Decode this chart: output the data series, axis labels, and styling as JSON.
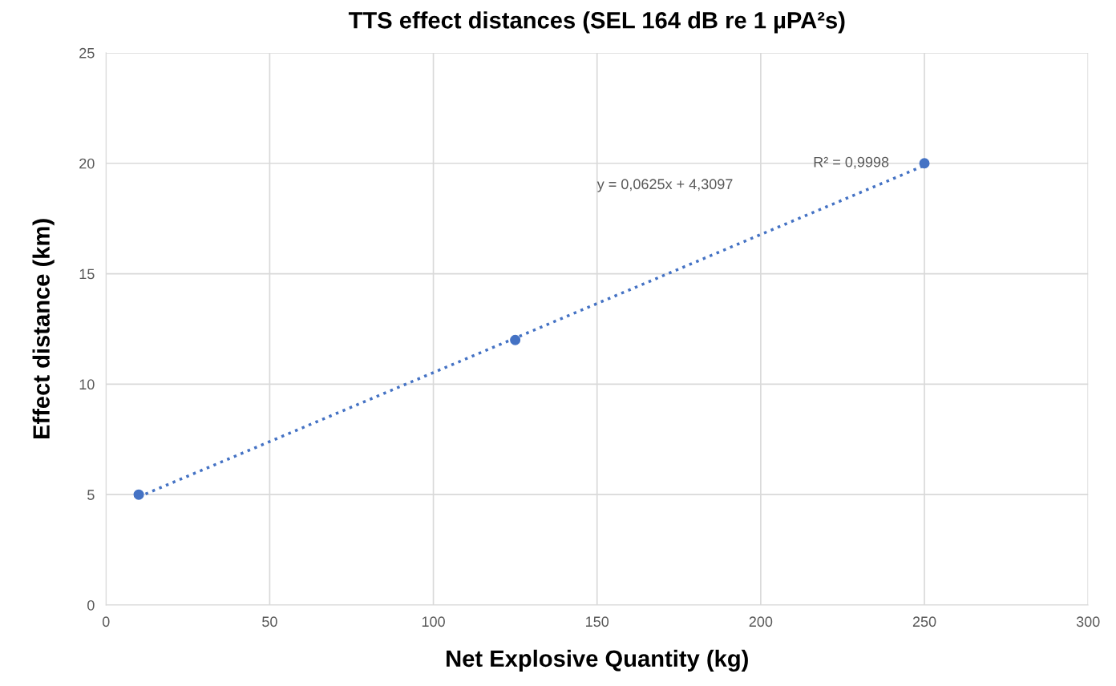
{
  "chart_data": {
    "type": "scatter",
    "title": "TTS effect distances (SEL 164 dB re 1 µPA²s)",
    "xlabel": "Net Explosive Quantity (kg)",
    "ylabel": "Effect distance (km)",
    "series": [
      {
        "color": "#4472c4",
        "x": [
          10,
          125,
          250
        ],
        "values": [
          5,
          12,
          20
        ],
        "marker": "circle"
      },
      {
        "type": "line",
        "color": "#4472c4",
        "x": [
          10,
          250
        ],
        "values": [
          4.9,
          19.9
        ],
        "line_style": "dotted",
        "marker": "none"
      }
    ],
    "annotations": [
      "y = 0,0625x + 4,3097",
      "R² = 0,9998"
    ],
    "xlim": [
      0,
      300
    ],
    "xticks": [
      0,
      50,
      100,
      150,
      200,
      250,
      300
    ],
    "ylim": [
      0,
      25
    ],
    "yticks": [
      0,
      5,
      10,
      15,
      20,
      25
    ],
    "grid": true,
    "legend": false
  }
}
